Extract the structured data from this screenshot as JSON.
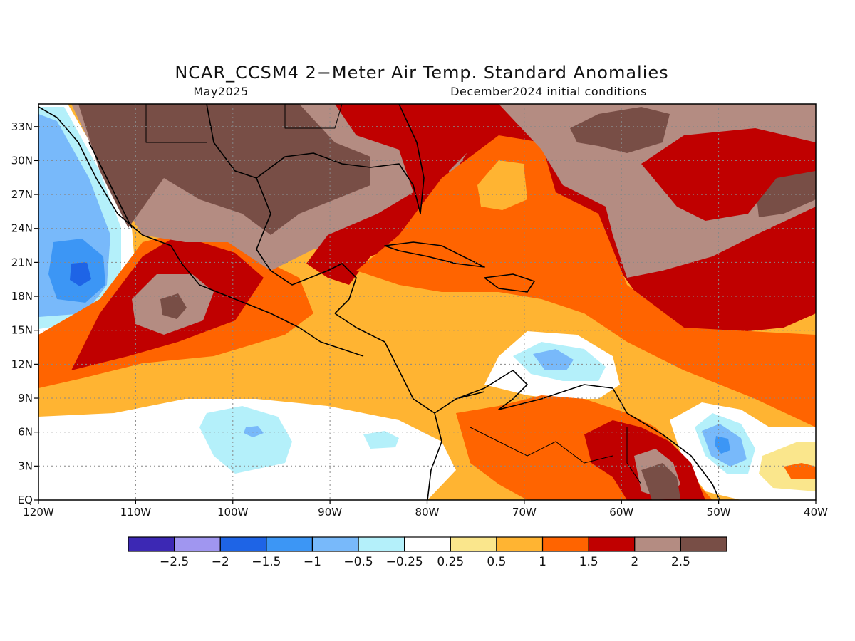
{
  "header": {
    "title": "NCAR_CCSM4 2−Meter Air Temp. Standard Anomalies",
    "valid_month": "May2025",
    "init_conditions": "December2024 initial conditions"
  },
  "map": {
    "lon_range": [
      -120,
      -40
    ],
    "lat_range": [
      0,
      35
    ],
    "lon_ticks": [
      {
        "value": -120,
        "label": "120W"
      },
      {
        "value": -110,
        "label": "110W"
      },
      {
        "value": -100,
        "label": "100W"
      },
      {
        "value": -90,
        "label": "90W"
      },
      {
        "value": -80,
        "label": "80W"
      },
      {
        "value": -70,
        "label": "70W"
      },
      {
        "value": -60,
        "label": "60W"
      },
      {
        "value": -50,
        "label": "50W"
      },
      {
        "value": -40,
        "label": "40W"
      }
    ],
    "lat_ticks": [
      {
        "value": 0,
        "label": "EQ"
      },
      {
        "value": 3,
        "label": "3N"
      },
      {
        "value": 6,
        "label": "6N"
      },
      {
        "value": 9,
        "label": "9N"
      },
      {
        "value": 12,
        "label": "12N"
      },
      {
        "value": 15,
        "label": "15N"
      },
      {
        "value": 18,
        "label": "18N"
      },
      {
        "value": 21,
        "label": "21N"
      },
      {
        "value": 24,
        "label": "24N"
      },
      {
        "value": 27,
        "label": "27N"
      },
      {
        "value": 30,
        "label": "30N"
      },
      {
        "value": 33,
        "label": "33N"
      }
    ],
    "grid": true,
    "grid_style": "dotted"
  },
  "colorbar": {
    "colors": [
      "#3c28b4",
      "#a096f0",
      "#1e64e6",
      "#3c96f5",
      "#78b9fa",
      "#b4f0fa",
      "#ffffff",
      "#fae68c",
      "#ffb432",
      "#ff6400",
      "#c00000",
      "#b48c82",
      "#784e46"
    ],
    "labels": [
      "−2.5",
      "−2",
      "−1.5",
      "−1",
      "−0.5",
      "−0.25",
      "0.25",
      "0.5",
      "1",
      "1.5",
      "2",
      "2.5"
    ]
  }
}
